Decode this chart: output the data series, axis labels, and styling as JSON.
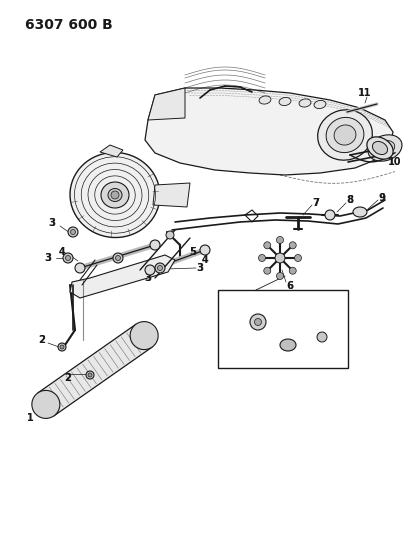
{
  "title": "6307 600 B",
  "background_color": "#ffffff",
  "line_color": "#1a1a1a",
  "figsize": [
    4.08,
    5.33
  ],
  "dpi": 100,
  "title_fontsize": 10,
  "title_fontweight": "bold"
}
